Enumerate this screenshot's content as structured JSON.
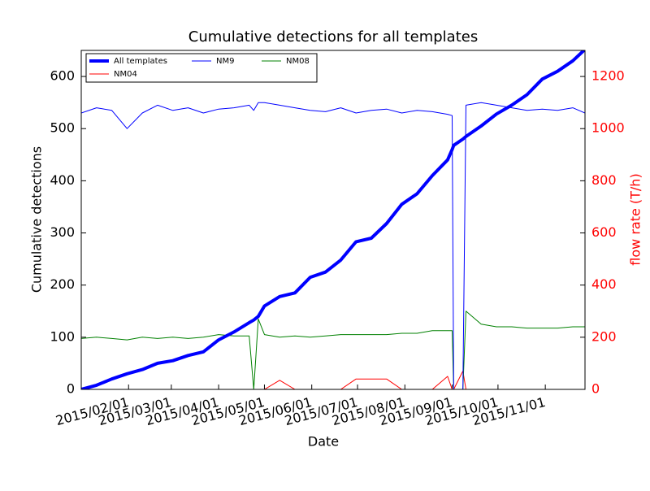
{
  "chart_data": {
    "type": "line",
    "title": "Cumulative detections for all templates",
    "x_label": "Date",
    "y_label": "Cumulative detections",
    "y2_label": "flow rate (T/h)",
    "y2_color": "#ff0000",
    "x": [
      "2015/01/01",
      "2015/01/11",
      "2015/01/21",
      "2015/01/31",
      "2015/02/10",
      "2015/02/20",
      "2015/03/02",
      "2015/03/12",
      "2015/03/22",
      "2015/04/01",
      "2015/04/11",
      "2015/04/21",
      "2015/04/24",
      "2015/04/27",
      "2015/05/01",
      "2015/05/11",
      "2015/05/21",
      "2015/05/31",
      "2015/06/10",
      "2015/06/20",
      "2015/06/30",
      "2015/07/10",
      "2015/07/20",
      "2015/07/30",
      "2015/08/09",
      "2015/08/19",
      "2015/08/29",
      "2015/09/01",
      "2015/09/02",
      "2015/09/08",
      "2015/09/10",
      "2015/09/20",
      "2015/09/30",
      "2015/10/10",
      "2015/10/20",
      "2015/10/30",
      "2015/11/09",
      "2015/11/19",
      "2015/11/27"
    ],
    "xlim": [
      "2015/01/01",
      "2015/11/27"
    ],
    "xticks": [
      "2015/02/01",
      "2015/03/01",
      "2015/04/01",
      "2015/05/01",
      "2015/06/01",
      "2015/07/01",
      "2015/08/01",
      "2015/09/01",
      "2015/10/01",
      "2015/11/01"
    ],
    "ylim": [
      0,
      650
    ],
    "yticks": [
      0,
      100,
      200,
      300,
      400,
      500,
      600
    ],
    "y2lim": [
      0,
      1300
    ],
    "y2ticks": [
      0,
      200,
      400,
      600,
      800,
      1000,
      1200
    ],
    "legend": "upper left",
    "series": [
      {
        "name": "All templates",
        "color": "#0000ff",
        "linewidth": 4,
        "axis": "y",
        "values": [
          0,
          8,
          20,
          30,
          38,
          50,
          55,
          65,
          72,
          95,
          110,
          128,
          133,
          140,
          160,
          178,
          185,
          215,
          225,
          248,
          283,
          290,
          318,
          355,
          375,
          410,
          440,
          460,
          468,
          480,
          485,
          505,
          528,
          545,
          565,
          595,
          610,
          630,
          652
        ]
      },
      {
        "name": "NM9",
        "color": "#0000ff",
        "linewidth": 1,
        "axis": "y2",
        "values": [
          1060,
          1080,
          1070,
          1000,
          1060,
          1090,
          1070,
          1080,
          1060,
          1075,
          1080,
          1090,
          1070,
          1100,
          1100,
          1090,
          1080,
          1070,
          1065,
          1080,
          1060,
          1070,
          1075,
          1060,
          1070,
          1065,
          1055,
          1050,
          0,
          0,
          1090,
          1100,
          1090,
          1080,
          1070,
          1075,
          1070,
          1080,
          1060
        ]
      },
      {
        "name": "NM08",
        "color": "#008000",
        "linewidth": 1,
        "axis": "y2",
        "values": [
          195,
          200,
          195,
          190,
          200,
          195,
          200,
          195,
          200,
          210,
          205,
          205,
          0,
          270,
          210,
          200,
          205,
          200,
          205,
          210,
          210,
          210,
          210,
          215,
          215,
          225,
          225,
          225,
          0,
          0,
          300,
          250,
          240,
          240,
          235,
          235,
          235,
          240,
          240
        ]
      },
      {
        "name": "NM04",
        "color": "#ff0000",
        "linewidth": 1,
        "axis": "y2",
        "values": [
          0,
          0,
          0,
          0,
          0,
          0,
          0,
          0,
          0,
          0,
          0,
          0,
          0,
          0,
          0,
          35,
          0,
          0,
          0,
          0,
          40,
          40,
          40,
          0,
          0,
          0,
          50,
          0,
          0,
          70,
          0,
          0,
          0,
          0,
          0,
          0,
          0,
          0,
          0
        ]
      }
    ]
  }
}
